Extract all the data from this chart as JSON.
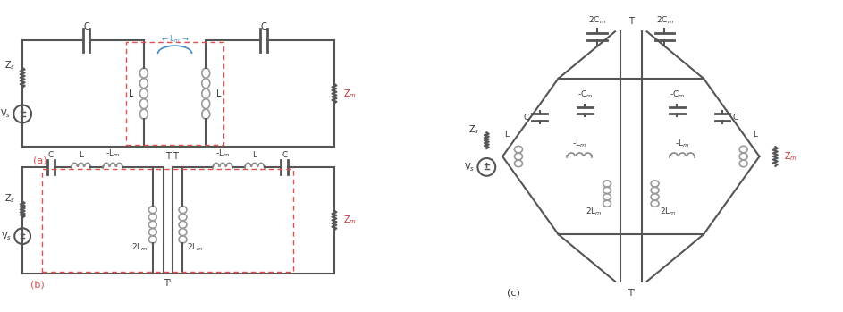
{
  "background": "#ffffff",
  "line_color": "#555555",
  "line_width": 1.5,
  "dashed_box_color": "#e05050",
  "label_a": "(a)",
  "label_b": "(b)",
  "label_c": "(c)",
  "text_color": "#333333",
  "blue_arc_color": "#4488cc",
  "coil_color": "#888888",
  "zm_color": "#cc3333",
  "figsize": [
    9.43,
    3.49
  ],
  "dpi": 100
}
